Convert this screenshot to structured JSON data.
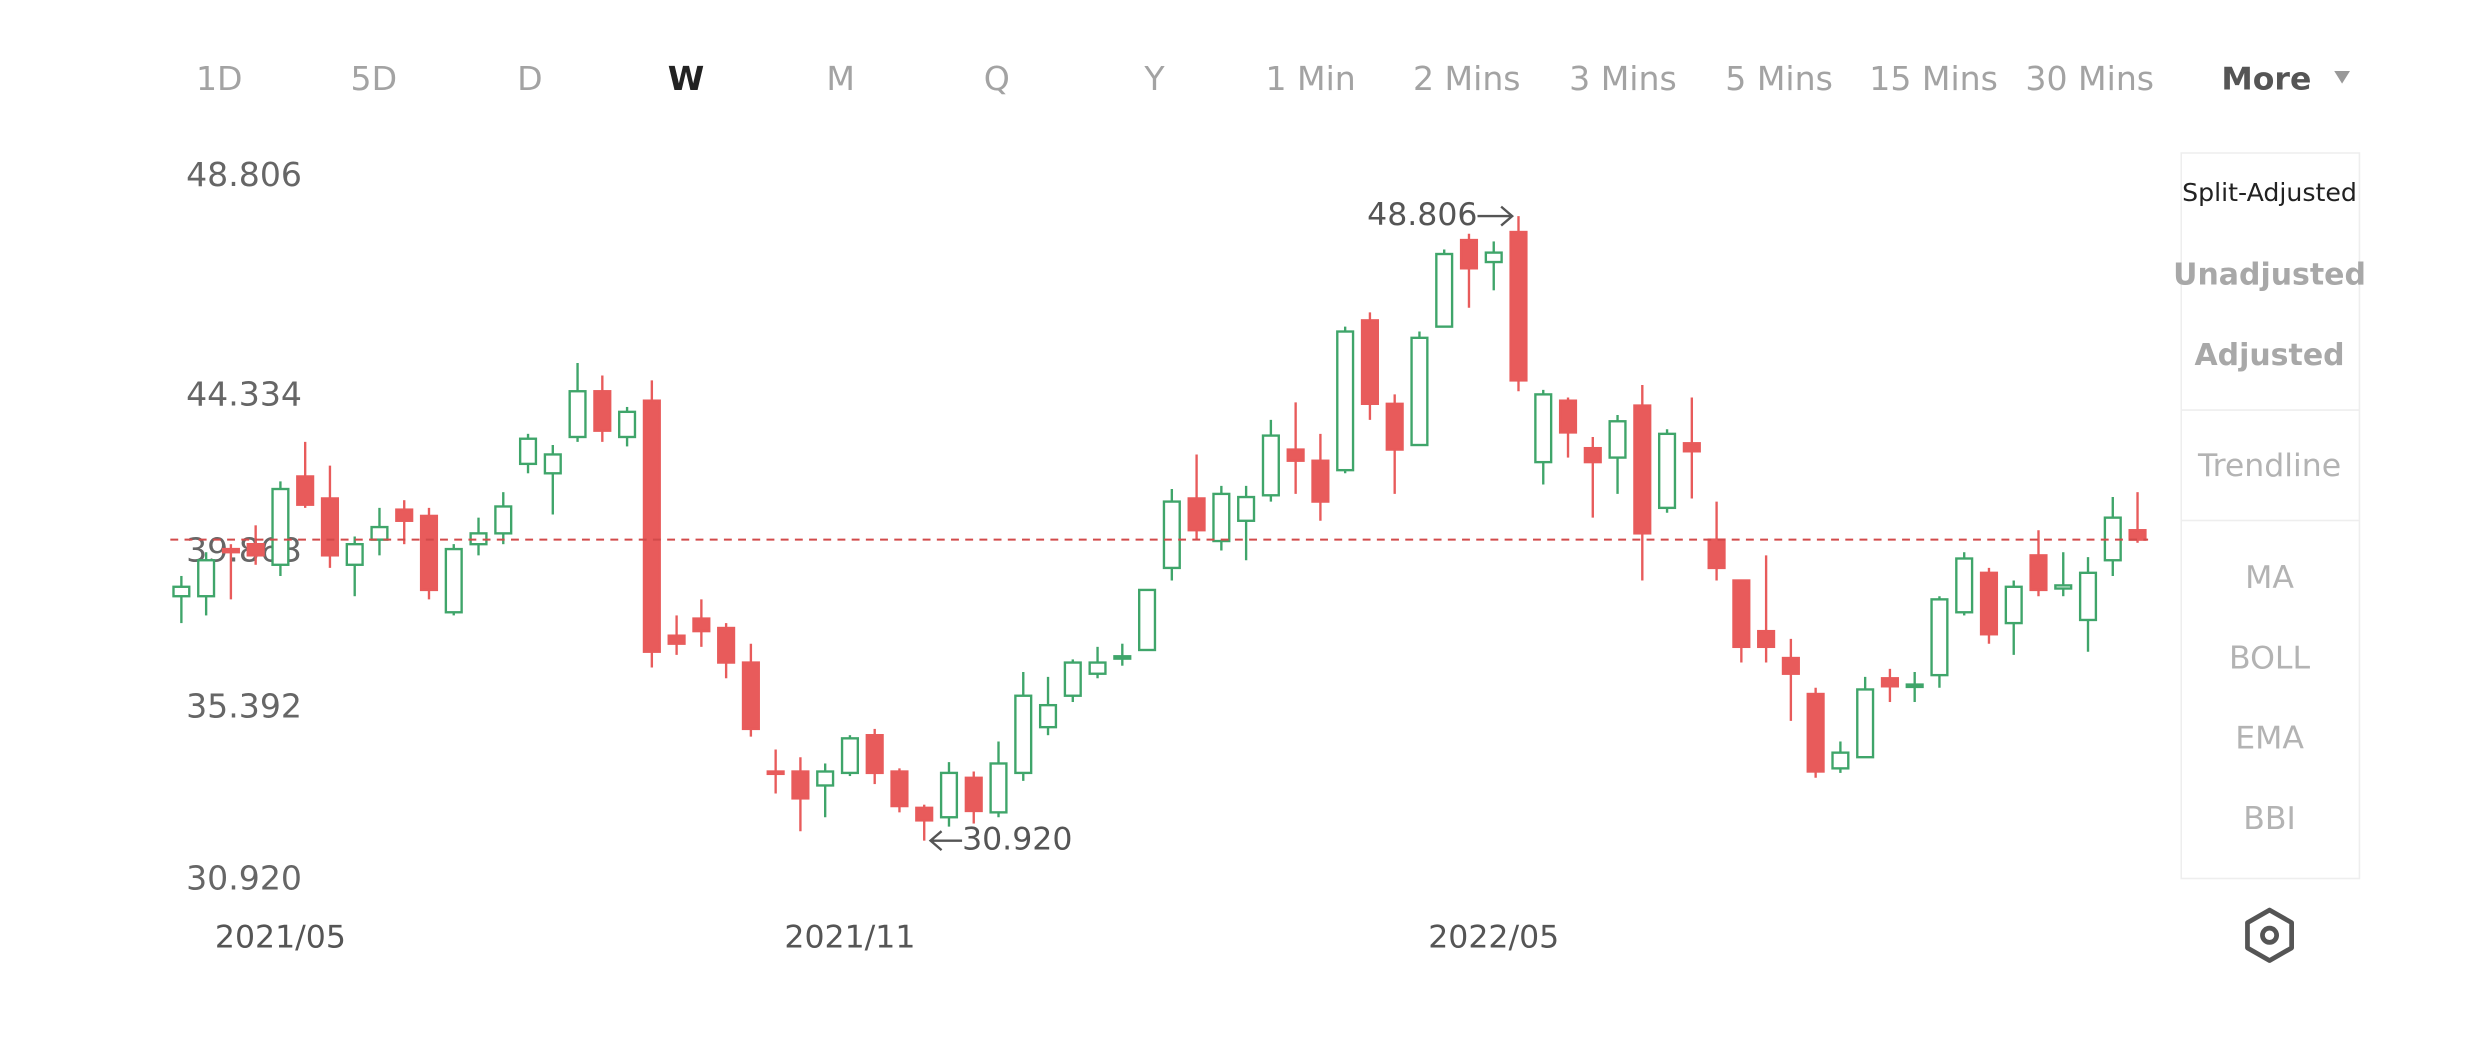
{
  "tabs": {
    "items": [
      "1D",
      "5D",
      "D",
      "W",
      "M",
      "Q",
      "Y",
      "1 Min",
      "2 Mins",
      "3 Mins",
      "5 Mins",
      "15 Mins",
      "30 Mins"
    ],
    "selected": 3,
    "more": "More"
  },
  "panel": {
    "adjust": [
      "Split-Adjusted",
      "Unadjusted",
      "Adjusted"
    ],
    "tools": [
      "Trendline"
    ],
    "indicators": [
      "MA",
      "BOLL",
      "EMA",
      "BBI"
    ]
  },
  "chart_data": {
    "type": "candlestick",
    "categories": [
      null,
      null,
      null,
      null,
      "2021/05",
      null,
      null,
      null,
      null,
      null,
      null,
      null,
      null,
      null,
      null,
      null,
      null,
      null,
      null,
      null,
      null,
      null,
      null,
      null,
      null,
      null,
      null,
      "2021/11",
      null,
      null,
      null,
      null,
      null,
      null,
      null,
      null,
      null,
      null,
      null,
      null,
      null,
      null,
      null,
      null,
      null,
      null,
      null,
      null,
      null,
      null,
      null,
      null,
      null,
      "2022/05",
      null,
      null,
      null,
      null,
      null,
      null,
      null,
      null,
      null,
      null,
      null,
      null,
      null,
      null,
      null,
      null,
      null,
      null,
      null,
      null,
      null,
      null,
      null,
      null,
      null,
      null
    ],
    "open": [
      37.92,
      37.92,
      39.27,
      39.41,
      38.82,
      41.35,
      40.72,
      38.82,
      39.54,
      40.4,
      40.22,
      37.46,
      39.41,
      39.72,
      41.71,
      41.44,
      42.48,
      43.79,
      42.48,
      43.52,
      36.79,
      37.28,
      37.01,
      36.02,
      32.9,
      32.9,
      32.5,
      32.86,
      33.94,
      32.9,
      31.86,
      31.59,
      32.72,
      31.73,
      32.86,
      34.17,
      35.07,
      35.7,
      36.15,
      36.38,
      38.73,
      40.72,
      39.5,
      40.08,
      40.81,
      42.12,
      41.8,
      41.53,
      45.82,
      43.43,
      42.25,
      45.64,
      48.12,
      47.49,
      48.35,
      41.76,
      43.52,
      42.16,
      41.89,
      43.38,
      40.45,
      42.3,
      39.54,
      38.37,
      36.92,
      36.15,
      35.12,
      32.99,
      33.31,
      35.57,
      35.34,
      35.66,
      37.46,
      38.59,
      37.15,
      39.09,
      38.14,
      37.24,
      38.95,
      39.81
    ],
    "high": [
      38.5,
      39.18,
      39.41,
      39.95,
      41.21,
      42.34,
      41.66,
      39.63,
      40.45,
      40.67,
      40.45,
      39.41,
      40.17,
      40.9,
      42.57,
      42.25,
      44.6,
      44.24,
      43.34,
      44.1,
      37.37,
      37.83,
      37.15,
      36.56,
      33.53,
      33.31,
      33.13,
      33.94,
      34.12,
      32.99,
      31.95,
      33.17,
      32.9,
      33.76,
      35.75,
      35.61,
      36.11,
      36.47,
      36.56,
      38.1,
      40.99,
      41.98,
      41.08,
      41.08,
      42.97,
      43.47,
      42.57,
      45.64,
      46.05,
      43.7,
      45.5,
      47.85,
      48.3,
      48.08,
      48.806,
      43.83,
      43.61,
      42.48,
      43.11,
      43.97,
      42.7,
      43.61,
      40.63,
      38.37,
      39.09,
      36.7,
      35.3,
      33.76,
      35.61,
      35.84,
      35.75,
      37.92,
      39.18,
      38.73,
      38.37,
      39.81,
      39.18,
      39.04,
      40.76,
      40.9
    ],
    "low": [
      37.15,
      37.37,
      37.83,
      38.82,
      38.5,
      40.45,
      38.73,
      37.92,
      39.09,
      39.41,
      37.83,
      37.37,
      39.09,
      39.41,
      41.44,
      40.26,
      42.34,
      42.34,
      42.21,
      35.88,
      36.24,
      36.47,
      35.57,
      33.9,
      32.27,
      31.19,
      31.59,
      32.77,
      32.54,
      31.73,
      30.92,
      31.32,
      31.41,
      31.59,
      32.63,
      33.94,
      34.89,
      35.57,
      35.93,
      36.38,
      38.37,
      39.54,
      39.23,
      38.95,
      40.63,
      40.85,
      40.08,
      41.44,
      42.97,
      40.85,
      42.25,
      45.64,
      46.18,
      46.68,
      43.79,
      41.12,
      41.89,
      40.17,
      40.85,
      38.37,
      40.31,
      40.72,
      38.37,
      36.02,
      36.02,
      34.35,
      32.72,
      32.86,
      33.31,
      34.89,
      34.89,
      35.3,
      37.37,
      36.56,
      36.24,
      37.92,
      37.92,
      36.33,
      38.5,
      39.45
    ],
    "close": [
      38.19,
      38.95,
      39.18,
      39.09,
      40.99,
      40.54,
      39.09,
      39.41,
      39.9,
      40.08,
      38.1,
      39.27,
      39.72,
      40.49,
      42.43,
      41.98,
      43.79,
      42.66,
      43.2,
      36.33,
      36.56,
      36.92,
      36.02,
      34.12,
      32.86,
      32.13,
      32.9,
      33.85,
      32.86,
      31.91,
      31.5,
      32.86,
      31.77,
      33.13,
      35.07,
      34.8,
      36.02,
      36.02,
      36.2,
      38.1,
      40.63,
      39.81,
      40.85,
      40.76,
      42.52,
      41.8,
      40.63,
      45.5,
      43.43,
      42.12,
      45.32,
      47.72,
      47.31,
      47.76,
      44.1,
      43.7,
      42.61,
      41.76,
      42.93,
      39.72,
      42.57,
      42.07,
      38.73,
      36.47,
      36.47,
      35.7,
      32.9,
      33.44,
      35.25,
      35.34,
      35.39,
      37.83,
      39.0,
      36.83,
      38.19,
      38.1,
      38.23,
      38.59,
      40.17,
      39.54
    ],
    "up_color": "#3fa56a",
    "down_color": "#e85b5b",
    "ylim": [
      30.92,
      48.806
    ],
    "yticks": [
      {
        "value": 30.92,
        "label": "30.920"
      },
      35.392,
      39.863,
      44.334,
      48.806
    ],
    "price_line": 39.54,
    "price_line_color": "#d24a4a",
    "annotations": [
      {
        "value": 48.806,
        "label": "48.806"
      },
      {
        "value": 30.92,
        "label": "30.920"
      }
    ]
  }
}
